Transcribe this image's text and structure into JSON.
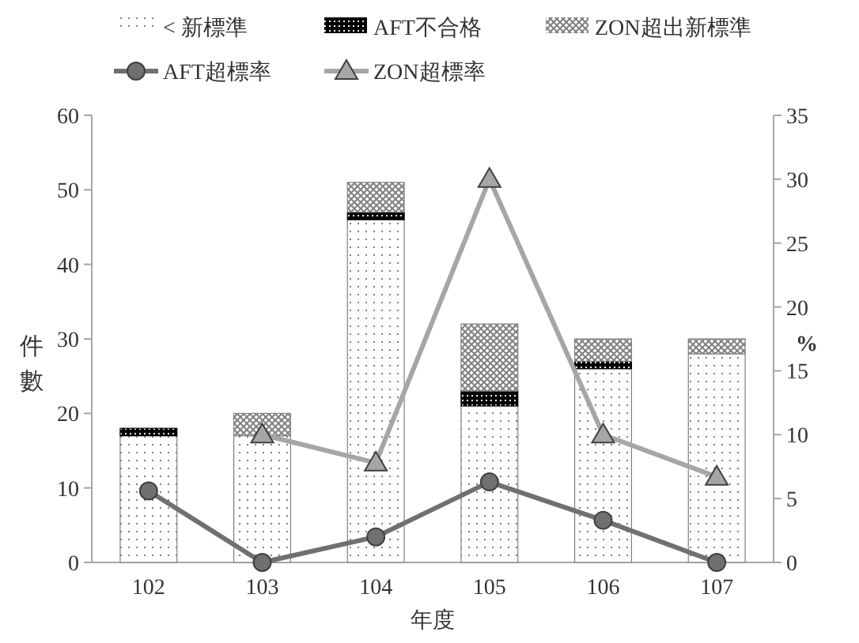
{
  "chart_data": {
    "type": "bar",
    "stacked": true,
    "categories": [
      "102",
      "103",
      "104",
      "105",
      "106",
      "107"
    ],
    "series": [
      {
        "name": "< 新標準",
        "color": "#7f7f7f",
        "values": [
          17,
          17,
          46,
          21,
          26,
          28
        ]
      },
      {
        "name": "AFT不合格",
        "color": "#000000",
        "values": [
          1,
          0,
          1,
          2,
          1,
          0
        ]
      },
      {
        "name": "ZON超出新標準",
        "color": "#808080",
        "values": [
          0,
          3,
          4,
          9,
          3,
          2
        ]
      },
      {
        "name": "AFT超標率",
        "type": "line",
        "axis": "y2",
        "color": "#707070",
        "marker": "circle",
        "values": [
          5.6,
          0,
          2,
          6.3,
          3.3,
          0
        ]
      },
      {
        "name": "ZON超標率",
        "type": "line",
        "axis": "y2",
        "color": "#a6a6a6",
        "marker": "triangle",
        "values": [
          null,
          10,
          7.8,
          30,
          10,
          6.7
        ]
      }
    ],
    "xlabel": "年度",
    "ylabel": "件數",
    "y2label": "%",
    "ylim": [
      0,
      60
    ],
    "yticks": [
      0,
      10,
      20,
      30,
      40,
      50,
      60
    ],
    "y2lim": [
      0,
      35
    ],
    "y2ticks": [
      0,
      5,
      10,
      15,
      20,
      25,
      30,
      35
    ],
    "legend": "top",
    "grid": false
  }
}
